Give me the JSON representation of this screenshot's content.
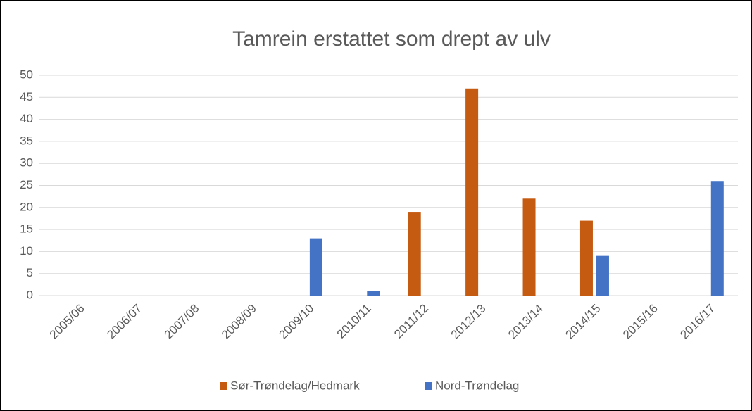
{
  "chart_data": {
    "type": "bar",
    "title": "Tamrein erstattet som drept av ulv",
    "categories": [
      "2005/06",
      "2006/07",
      "2007/08",
      "2008/09",
      "2009/10",
      "2010/11",
      "2011/12",
      "2012/13",
      "2013/14",
      "2014/15",
      "2015/16",
      "2016/17"
    ],
    "series": [
      {
        "name": "Sør-Trøndelag/Hedmark",
        "color": "#c55a11",
        "values": [
          0,
          0,
          0,
          0,
          0,
          0,
          19,
          47,
          22,
          17,
          0,
          0
        ]
      },
      {
        "name": "Nord-Trøndelag",
        "color": "#4472c4",
        "values": [
          0,
          0,
          0,
          0,
          13,
          1,
          0,
          0,
          0,
          9,
          0,
          26
        ]
      }
    ],
    "ylim": [
      0,
      50
    ],
    "yticks": [
      0,
      5,
      10,
      15,
      20,
      25,
      30,
      35,
      40,
      45,
      50
    ],
    "grid": true,
    "legend": "bottom"
  }
}
